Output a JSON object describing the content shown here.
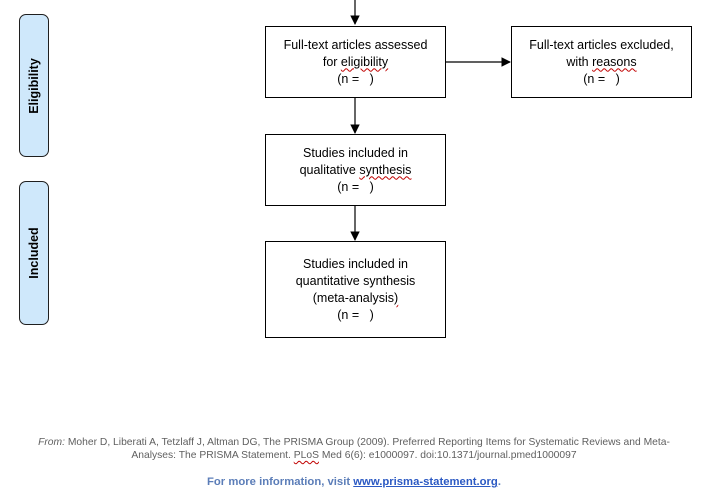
{
  "phases": {
    "eligibility": "Eligibility",
    "included": "Included"
  },
  "boxes": {
    "fulltext_assessed": {
      "line1": "Full-text articles assessed",
      "line2a": "for ",
      "line2b": "eligibility",
      "line3": "(n =   )"
    },
    "fulltext_excluded": {
      "line1": "Full-text articles excluded,",
      "line2a": "with ",
      "line2b": "reasons",
      "line3": "(n =   )"
    },
    "qualitative": {
      "line1": "Studies included in",
      "line2a": "qualitative ",
      "line2b": "synthesis",
      "line3": "(n =   )"
    },
    "quantitative": {
      "line1": "Studies included in",
      "line2": "quantitative synthesis",
      "line3a": "(meta-analysis",
      "line3b": ")",
      "line4": "(n =   )"
    }
  },
  "citation": {
    "from": "From:",
    "line1": " Moher D, Liberati A, Tetzlaff J, Altman DG, The PRISMA Group (2009). Preferred Reporting Items for Systematic Reviews and Meta-",
    "line2a": "Analyses: The PRISMA Statement. ",
    "line2b": "PLoS",
    "line2c": " Med 6(6): e1000097. doi:10.1371/journal.pmed1000097"
  },
  "more_info": {
    "prefix": "For more information, visit ",
    "link": "www.prisma-statement.org",
    "suffix": "."
  },
  "colors": {
    "phase_fill": "#cfe8fb",
    "link": "#2b59c3",
    "spellcheck": "#c00000"
  }
}
